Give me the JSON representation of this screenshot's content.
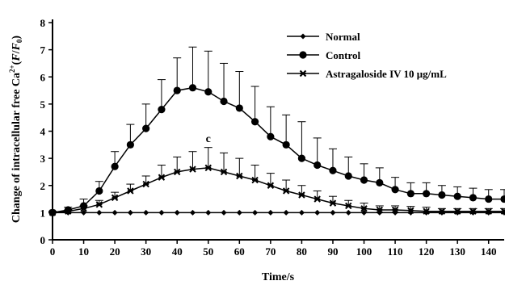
{
  "chart_data": {
    "type": "line",
    "xlabel": "Time/s",
    "ylabel_main": "Change of intracellular free Ca",
    "ylabel_sup": "2+",
    "ylabel_paren_open": "(",
    "ylabel_F": "F",
    "ylabel_slash": "/",
    "ylabel_F0": "F",
    "ylabel_F0_sub": "0",
    "ylabel_paren_close": ")",
    "xlim": [
      0,
      145
    ],
    "ylim": [
      0,
      8
    ],
    "xticks": [
      "0",
      "10",
      "20",
      "30",
      "40",
      "50",
      "60",
      "70",
      "80",
      "90",
      "100",
      "110",
      "120",
      "130",
      "140"
    ],
    "yticks": [
      "0",
      "1",
      "2",
      "3",
      "4",
      "5",
      "6",
      "7",
      "8"
    ],
    "legend_position": "top-right",
    "grid": false,
    "x": [
      0,
      5,
      10,
      15,
      20,
      25,
      30,
      35,
      40,
      45,
      50,
      55,
      60,
      65,
      70,
      75,
      80,
      85,
      90,
      95,
      100,
      105,
      110,
      115,
      120,
      125,
      130,
      135,
      140,
      145
    ],
    "series": [
      {
        "name": "Normal",
        "marker": "diamond",
        "values": [
          1.0,
          1.0,
          1.0,
          1.0,
          1.0,
          1.0,
          1.0,
          1.0,
          1.0,
          1.0,
          1.0,
          1.0,
          1.0,
          1.0,
          1.0,
          1.0,
          1.0,
          1.0,
          1.0,
          1.0,
          1.0,
          1.0,
          1.0,
          1.0,
          1.0,
          1.0,
          1.0,
          1.0,
          1.0,
          1.0
        ],
        "errors": [
          0,
          0,
          0,
          0,
          0,
          0,
          0,
          0,
          0,
          0,
          0,
          0,
          0,
          0,
          0,
          0,
          0,
          0,
          0,
          0,
          0,
          0,
          0,
          0,
          0,
          0,
          0,
          0,
          0,
          0
        ]
      },
      {
        "name": "Control",
        "marker": "circle",
        "values": [
          1.0,
          1.1,
          1.25,
          1.8,
          2.7,
          3.5,
          4.1,
          4.8,
          5.5,
          5.6,
          5.45,
          5.1,
          4.85,
          4.35,
          3.8,
          3.5,
          3.0,
          2.75,
          2.55,
          2.35,
          2.2,
          2.1,
          1.85,
          1.7,
          1.7,
          1.65,
          1.6,
          1.55,
          1.5,
          1.5
        ],
        "errors": [
          0.05,
          0.1,
          0.25,
          0.35,
          0.55,
          0.75,
          0.9,
          1.1,
          1.2,
          1.5,
          1.5,
          1.4,
          1.35,
          1.3,
          1.1,
          1.1,
          1.35,
          1.0,
          0.8,
          0.7,
          0.6,
          0.55,
          0.45,
          0.4,
          0.4,
          0.35,
          0.35,
          0.35,
          0.35,
          0.35
        ]
      },
      {
        "name": "Astragaloside IV 10 μg/mL",
        "marker": "x",
        "values": [
          1.0,
          1.05,
          1.15,
          1.3,
          1.55,
          1.8,
          2.05,
          2.3,
          2.5,
          2.6,
          2.65,
          2.5,
          2.35,
          2.2,
          2.0,
          1.8,
          1.65,
          1.5,
          1.35,
          1.25,
          1.15,
          1.1,
          1.1,
          1.08,
          1.05,
          1.05,
          1.05,
          1.05,
          1.05,
          1.05
        ],
        "errors": [
          0.05,
          0.05,
          0.1,
          0.15,
          0.2,
          0.25,
          0.3,
          0.45,
          0.55,
          0.65,
          0.75,
          0.7,
          0.65,
          0.55,
          0.45,
          0.4,
          0.35,
          0.3,
          0.25,
          0.2,
          0.2,
          0.15,
          0.15,
          0.15,
          0.15,
          0.1,
          0.1,
          0.1,
          0.1,
          0.1
        ]
      }
    ],
    "annotations": [
      {
        "text": "c",
        "x": 50,
        "y": 3.6
      }
    ]
  }
}
